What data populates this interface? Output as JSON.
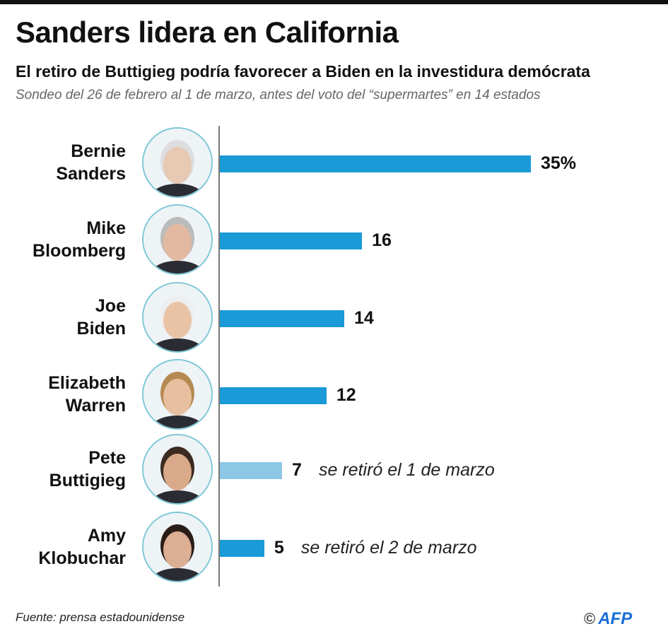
{
  "title": "Sanders lidera en California",
  "subtitle": "El retiro de Buttigieg podría favorecer a Biden en la investidura demócrata",
  "note": "Sondeo del 26 de febrero al 1 de marzo, antes del voto del “supermartes” en 14 estados",
  "source": "Fuente: prensa estadounidense",
  "logo": {
    "copyright": "©",
    "text": "AFP"
  },
  "colors": {
    "bar": "#1a9ad6",
    "bar_withdrawn": "#8ec6e6"
  },
  "chart_data": {
    "type": "bar",
    "orientation": "horizontal",
    "unit": "%",
    "categories": [
      {
        "line1": "Bernie",
        "line2": "Sanders"
      },
      {
        "line1": "Mike",
        "line2": "Bloomberg"
      },
      {
        "line1": "Joe",
        "line2": "Biden"
      },
      {
        "line1": "Elizabeth",
        "line2": "Warren"
      },
      {
        "line1": "Pete",
        "line2": "Buttigieg"
      },
      {
        "line1": "Amy",
        "line2": "Klobuchar"
      }
    ],
    "values": [
      35,
      16,
      14,
      12,
      7,
      5
    ],
    "value_labels": [
      "35%",
      "16",
      "14",
      "12",
      "7",
      "5"
    ],
    "annotations": [
      "",
      "",
      "",
      "",
      "se retiró el 1 de marzo",
      "se retiró el 2 de marzo"
    ],
    "highlight_light": [
      false,
      false,
      false,
      false,
      true,
      false
    ],
    "xlim": [
      0,
      35
    ]
  }
}
